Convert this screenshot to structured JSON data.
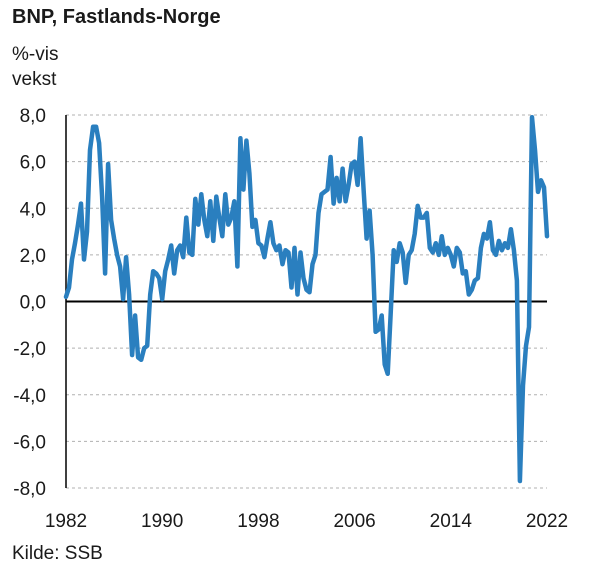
{
  "title": "BNP, Fastlands-Norge",
  "unit_label": "%-vis vekst",
  "source": "Kilde: SSB",
  "colors": {
    "line": "#2a7fbf",
    "zero_line": "#000000",
    "grid": "#b0b0b0"
  },
  "chart_data": {
    "type": "line",
    "title": "BNP, Fastlands-Norge",
    "ylabel": "%-vis vekst",
    "xlabel": "",
    "ylim": [
      -8,
      8
    ],
    "xlim": [
      1982,
      2022
    ],
    "y_ticks": [
      "8,0",
      "6,0",
      "4,0",
      "2,0",
      "0,0",
      "-2,0",
      "-4,0",
      "-6,0",
      "-8,0"
    ],
    "y_tick_values": [
      8,
      6,
      4,
      2,
      0,
      -2,
      -4,
      -6,
      -8
    ],
    "x_ticks": [
      "1982",
      "1990",
      "1998",
      "2006",
      "2014",
      "2022"
    ],
    "x_tick_values": [
      1982,
      1990,
      1998,
      2006,
      2014,
      2022
    ],
    "grid": "horizontal dashed",
    "series": [
      {
        "x": [
          1982.0,
          1982.25,
          1982.5,
          1982.75,
          1983.0,
          1983.25,
          1983.5,
          1983.75,
          1984.0,
          1984.25,
          1984.5,
          1984.75,
          1985.0,
          1985.25,
          1985.5,
          1985.75,
          1986.0,
          1986.25,
          1986.5,
          1986.75,
          1987.0,
          1987.25,
          1987.5,
          1987.75,
          1988.0,
          1988.25,
          1988.5,
          1988.75,
          1989.0,
          1989.25,
          1989.5,
          1989.75,
          1990.0,
          1990.25,
          1990.5,
          1990.75,
          1991.0,
          1991.25,
          1991.5,
          1991.75,
          1992.0,
          1992.25,
          1992.5,
          1992.75,
          1993.0,
          1993.25,
          1993.5,
          1993.75,
          1994.0,
          1994.25,
          1994.5,
          1994.75,
          1995.0,
          1995.25,
          1995.5,
          1995.75,
          1996.0,
          1996.25,
          1996.5,
          1996.75,
          1997.0,
          1997.25,
          1997.5,
          1997.75,
          1998.0,
          1998.25,
          1998.5,
          1998.75,
          1999.0,
          1999.25,
          1999.5,
          1999.75,
          2000.0,
          2000.25,
          2000.5,
          2000.75,
          2001.0,
          2001.25,
          2001.5,
          2001.75,
          2002.0,
          2002.25,
          2002.5,
          2002.75,
          2003.0,
          2003.25,
          2003.5,
          2003.75,
          2004.0,
          2004.25,
          2004.5,
          2004.75,
          2005.0,
          2005.25,
          2005.5,
          2005.75,
          2006.0,
          2006.25,
          2006.5,
          2006.75,
          2007.0,
          2007.25,
          2007.5,
          2007.75,
          2008.0,
          2008.25,
          2008.5,
          2008.75,
          2009.0,
          2009.25,
          2009.5,
          2009.75,
          2010.0,
          2010.25,
          2010.5,
          2010.75,
          2011.0,
          2011.25,
          2011.5,
          2011.75,
          2012.0,
          2012.25,
          2012.5,
          2012.75,
          2013.0,
          2013.25,
          2013.5,
          2013.75,
          2014.0,
          2014.25,
          2014.5,
          2014.75,
          2015.0,
          2015.25,
          2015.5,
          2015.75,
          2016.0,
          2016.25,
          2016.5,
          2016.75,
          2017.0,
          2017.25,
          2017.5,
          2017.75,
          2018.0,
          2018.25,
          2018.5,
          2018.75,
          2019.0,
          2019.25,
          2019.5,
          2019.75,
          2020.0,
          2020.25,
          2020.5,
          2020.75,
          2021.0,
          2021.25,
          2021.5,
          2021.75,
          2022.0
        ],
        "y": [
          0.2,
          0.6,
          1.8,
          2.5,
          3.3,
          4.2,
          1.8,
          3.0,
          6.5,
          7.5,
          7.5,
          6.8,
          4.5,
          1.2,
          5.9,
          3.5,
          2.7,
          2.0,
          1.5,
          0.1,
          1.9,
          0.3,
          -2.3,
          -0.6,
          -2.4,
          -2.5,
          -2.0,
          -1.9,
          0.3,
          1.3,
          1.2,
          1.0,
          0.1,
          1.3,
          1.8,
          2.4,
          1.2,
          2.2,
          2.4,
          1.9,
          3.6,
          2.1,
          2.0,
          4.4,
          3.3,
          4.6,
          3.5,
          2.8,
          4.3,
          2.6,
          4.5,
          3.6,
          2.8,
          4.6,
          3.3,
          3.6,
          4.3,
          1.5,
          7.0,
          4.8,
          6.9,
          5.5,
          3.2,
          3.5,
          2.5,
          2.4,
          1.9,
          2.7,
          3.4,
          2.5,
          2.2,
          2.4,
          1.6,
          2.2,
          2.1,
          0.6,
          2.3,
          0.3,
          2.1,
          1.0,
          0.5,
          0.4,
          1.6,
          2.0,
          3.8,
          4.6,
          4.7,
          4.8,
          6.2,
          4.2,
          5.3,
          4.3,
          5.7,
          4.3,
          5.0,
          5.9,
          6.0,
          5.0,
          7.0,
          4.8,
          2.7,
          3.9,
          2.0,
          -1.3,
          -1.2,
          -0.6,
          -2.7,
          -3.1,
          -0.5,
          2.2,
          1.7,
          2.5,
          2.1,
          0.8,
          2.0,
          2.2,
          2.9,
          4.1,
          3.6,
          3.6,
          3.8,
          2.3,
          2.1,
          2.5,
          2.0,
          2.8,
          2.0,
          2.3,
          2.0,
          1.5,
          2.3,
          2.1,
          1.2,
          1.3,
          0.3,
          0.5,
          0.9,
          1.0,
          2.3,
          2.9,
          2.7,
          3.4,
          2.2,
          2.0,
          2.6,
          2.2,
          2.5,
          2.3,
          3.1,
          2.2,
          0.9,
          -7.7,
          -3.6,
          -1.9,
          -1.1,
          7.9,
          6.5,
          4.7,
          5.2,
          4.9,
          2.8
        ],
        "approximate": true
      }
    ]
  }
}
